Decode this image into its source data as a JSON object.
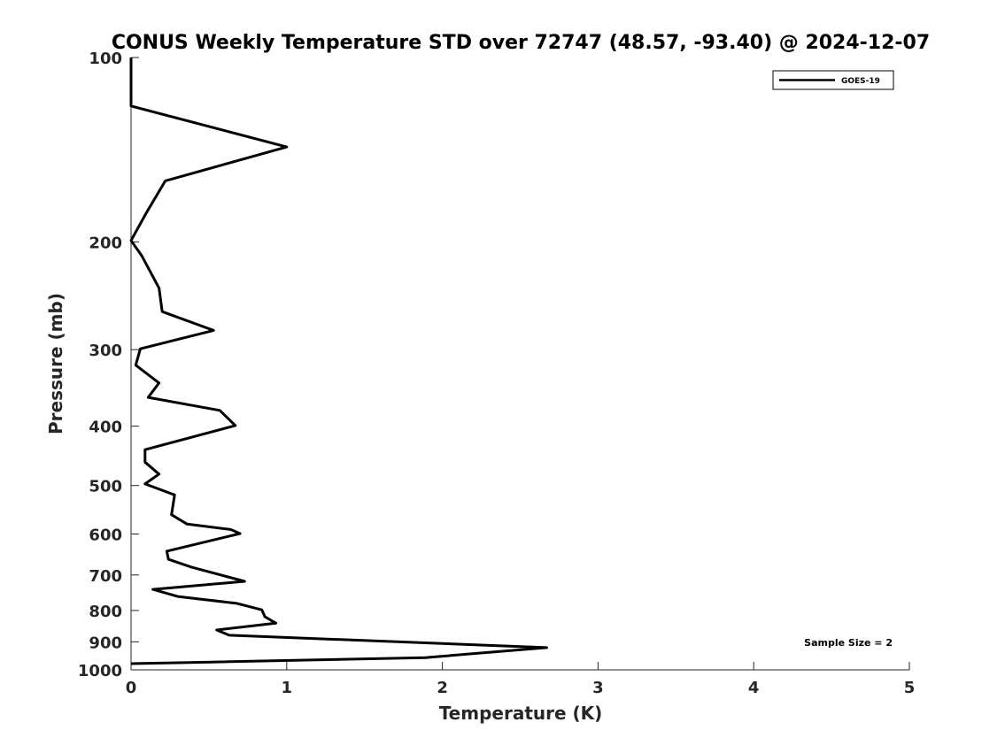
{
  "chart_data": {
    "type": "line",
    "title": "CONUS Weekly Temperature STD over 72747 (48.57, -93.40) @ 2024-12-07",
    "xlabel": "Temperature (K)",
    "ylabel": "Pressure (mb)",
    "xlim": [
      0,
      5
    ],
    "ylim": [
      100,
      1000
    ],
    "yscale": "log",
    "y_reversed": true,
    "grid": false,
    "xticks": [
      "0",
      "1",
      "2",
      "3",
      "4",
      "5"
    ],
    "yticks": [
      "100",
      "200",
      "300",
      "400",
      "500",
      "600",
      "700",
      "800",
      "900",
      "1000"
    ],
    "legend": {
      "placement": "top-right",
      "entries": [
        "GOES-19"
      ]
    },
    "annotation": "Sample Size = 2",
    "series": [
      {
        "name": "GOES-19",
        "color": "#000000",
        "points": [
          [
            0.0,
            100
          ],
          [
            0.0,
            120
          ],
          [
            1.0,
            140
          ],
          [
            0.22,
            159
          ],
          [
            0.1,
            179
          ],
          [
            0.0,
            199
          ],
          [
            0.07,
            211
          ],
          [
            0.18,
            238
          ],
          [
            0.2,
            260
          ],
          [
            0.53,
            279
          ],
          [
            0.06,
            299
          ],
          [
            0.03,
            318
          ],
          [
            0.18,
            340
          ],
          [
            0.11,
            359
          ],
          [
            0.57,
            377
          ],
          [
            0.67,
            399
          ],
          [
            0.09,
            437
          ],
          [
            0.09,
            458
          ],
          [
            0.18,
            479
          ],
          [
            0.09,
            497
          ],
          [
            0.28,
            518
          ],
          [
            0.26,
            558
          ],
          [
            0.36,
            578
          ],
          [
            0.64,
            590
          ],
          [
            0.7,
            599
          ],
          [
            0.23,
            640
          ],
          [
            0.24,
            660
          ],
          [
            0.39,
            680
          ],
          [
            0.73,
            717
          ],
          [
            0.14,
            739
          ],
          [
            0.3,
            759
          ],
          [
            0.68,
            779
          ],
          [
            0.84,
            798
          ],
          [
            0.86,
            819
          ],
          [
            0.93,
            839
          ],
          [
            0.55,
            861
          ],
          [
            0.63,
            878
          ],
          [
            2.67,
            920
          ],
          [
            1.89,
            955
          ],
          [
            0.52,
            971
          ],
          [
            0.0,
            977
          ]
        ]
      }
    ]
  }
}
